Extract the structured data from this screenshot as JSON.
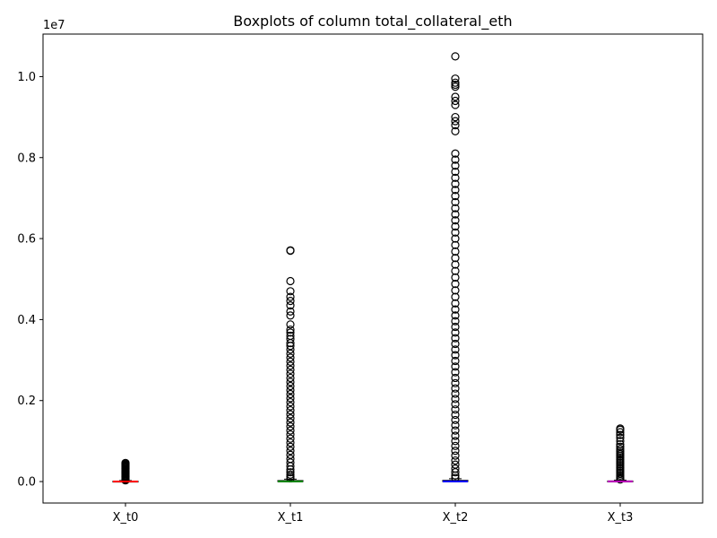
{
  "chart_data": {
    "type": "boxplot",
    "title": "Boxplots of column total_collateral_eth",
    "xlabel": "",
    "ylabel": "",
    "y_scale_label": "1e7",
    "ylim": [
      -530000,
      11050000
    ],
    "y_ticks": [
      0,
      2000000,
      4000000,
      6000000,
      8000000,
      10000000
    ],
    "y_tick_labels": [
      "0.0",
      "0.2",
      "0.4",
      "0.6",
      "0.8",
      "1.0"
    ],
    "grid": false,
    "categories": [
      "X_t0",
      "X_t1",
      "X_t2",
      "X_t3"
    ],
    "series": [
      {
        "category": "X_t0",
        "median_color": "#ff0000",
        "box": {
          "q1": 0,
          "median": 2000,
          "q3": 10000,
          "whisker_low": 0,
          "whisker_high": 25000
        },
        "outliers": [
          30000,
          45000,
          60000,
          80000,
          100000,
          120000,
          140000,
          160000,
          180000,
          200000,
          220000,
          240000,
          260000,
          280000,
          300000,
          320000,
          340000,
          360000,
          380000,
          400000,
          420000,
          440000,
          460000
        ]
      },
      {
        "category": "X_t1",
        "median_color": "#008000",
        "box": {
          "q1": 0,
          "median": 5000,
          "q3": 25000,
          "whisker_low": 0,
          "whisker_high": 60000
        },
        "outliers": [
          80000,
          120000,
          170000,
          230000,
          300000,
          380000,
          470000,
          560000,
          660000,
          760000,
          860000,
          960000,
          1060000,
          1160000,
          1260000,
          1360000,
          1460000,
          1560000,
          1660000,
          1760000,
          1860000,
          1960000,
          2060000,
          2160000,
          2260000,
          2360000,
          2460000,
          2560000,
          2660000,
          2760000,
          2860000,
          2960000,
          3060000,
          3160000,
          3260000,
          3350000,
          3420000,
          3520000,
          3600000,
          3680000,
          3750000,
          3880000,
          4100000,
          4200000,
          4350000,
          4460000,
          4560000,
          4700000,
          4950000,
          5700000,
          5710000
        ]
      },
      {
        "category": "X_t2",
        "median_color": "#0000ff",
        "box": {
          "q1": 0,
          "median": 5000,
          "q3": 30000,
          "whisker_low": 0,
          "whisker_high": 70000
        },
        "outliers": [
          90000,
          150000,
          230000,
          320000,
          420000,
          520000,
          640000,
          760000,
          880000,
          1000000,
          1130000,
          1260000,
          1390000,
          1520000,
          1650000,
          1780000,
          1910000,
          2040000,
          2170000,
          2300000,
          2430000,
          2560000,
          2700000,
          2840000,
          2980000,
          3120000,
          3260000,
          3400000,
          3540000,
          3680000,
          3820000,
          3960000,
          4100000,
          4250000,
          4400000,
          4560000,
          4720000,
          4880000,
          5040000,
          5200000,
          5360000,
          5520000,
          5680000,
          5840000,
          6000000,
          6150000,
          6300000,
          6450000,
          6600000,
          6750000,
          6900000,
          7050000,
          7200000,
          7350000,
          7500000,
          7650000,
          7800000,
          7950000,
          8100000,
          8650000,
          8800000,
          8900000,
          9000000,
          9300000,
          9400000,
          9500000,
          9750000,
          9800000,
          9850000,
          9950000,
          10500000
        ]
      },
      {
        "category": "X_t3",
        "median_color": "#bf00bf",
        "box": {
          "q1": 0,
          "median": 3000,
          "q3": 15000,
          "whisker_low": 0,
          "whisker_high": 35000
        },
        "outliers": [
          50000,
          80000,
          110000,
          150000,
          190000,
          230000,
          270000,
          310000,
          350000,
          390000,
          430000,
          470000,
          510000,
          550000,
          590000,
          630000,
          670000,
          710000,
          750000,
          800000,
          860000,
          920000,
          1000000,
          1080000,
          1150000,
          1220000,
          1280000,
          1310000
        ]
      }
    ]
  }
}
